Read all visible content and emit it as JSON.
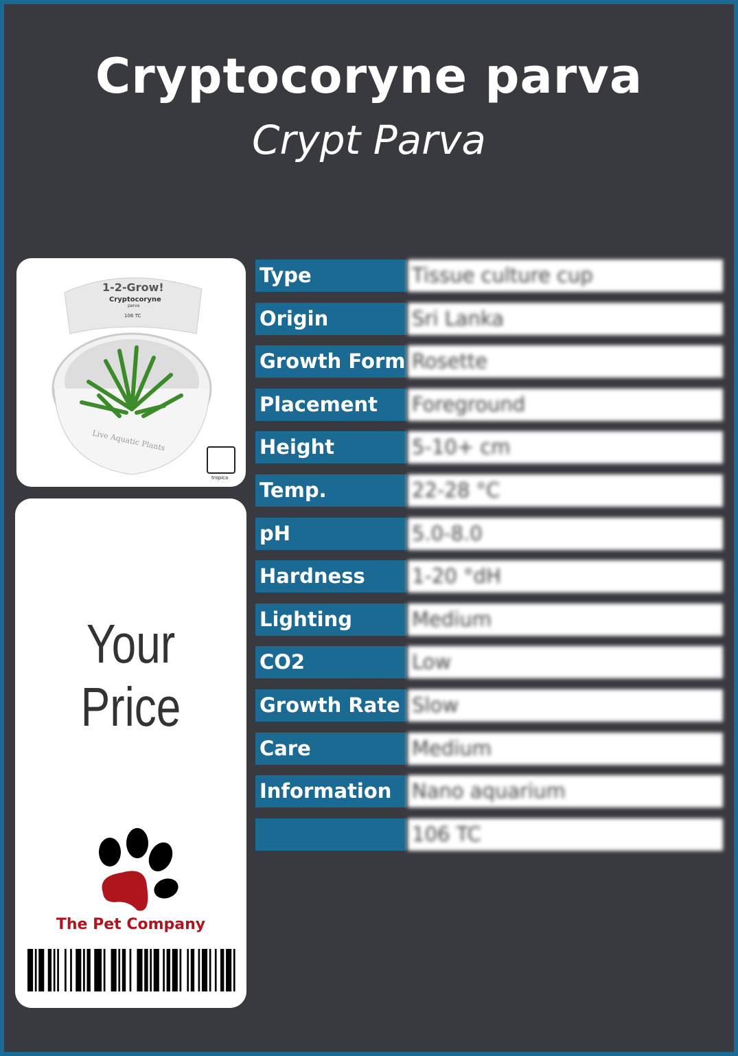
{
  "header": {
    "title": "Cryptocoryne parva",
    "subtitle": "Crypt Parva"
  },
  "product_image": {
    "lettering": [
      "1-2-Grow!",
      "Cryptocoryne",
      "parva",
      "106 TC",
      "Live Aquatic Plants",
      "tropica"
    ]
  },
  "price_card": {
    "price_label": "Your Price",
    "brand": "The Pet Company"
  },
  "colors": {
    "border": "#1b6a93",
    "background": "#393a3f",
    "label_bg": "#1b6a93",
    "brand_red": "#b0141c"
  },
  "specs": [
    {
      "label": "Type",
      "value": "Tissue culture cup"
    },
    {
      "label": "Origin",
      "value": "Sri Lanka"
    },
    {
      "label": "Growth Form",
      "value": "Rosette"
    },
    {
      "label": "Placement",
      "value": "Foreground"
    },
    {
      "label": "Height",
      "value": "5-10+ cm"
    },
    {
      "label": "Temp.",
      "value": "22-28 °C"
    },
    {
      "label": "pH",
      "value": "5.0-8.0"
    },
    {
      "label": "Hardness",
      "value": "1-20 °dH"
    },
    {
      "label": "Lighting",
      "value": "Medium"
    },
    {
      "label": "CO2",
      "value": "Low"
    },
    {
      "label": "Growth Rate",
      "value": "Slow"
    },
    {
      "label": "Care",
      "value": "Medium"
    },
    {
      "label": "Information",
      "value": "Nano aquarium"
    },
    {
      "label": "",
      "value": "106 TC"
    }
  ]
}
